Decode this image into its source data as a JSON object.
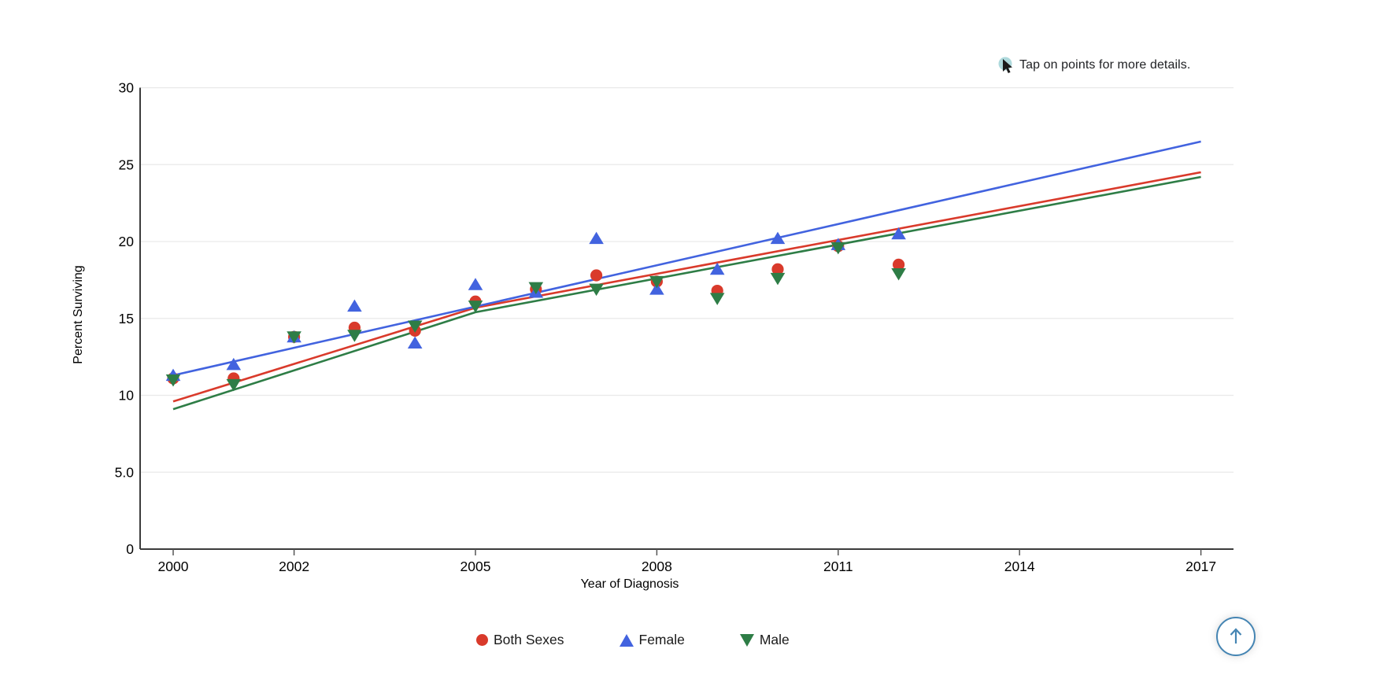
{
  "note": {
    "text": "Tap on points for more details.",
    "icon": "cursor-icon",
    "icon_circle_color": "#aed9dc",
    "icon_arrow_color": "#1a1a1a"
  },
  "chart_data": {
    "type": "scatter",
    "title": "",
    "xlabel": "Year of Diagnosis",
    "ylabel": "Percent Surviving",
    "xlim": [
      1999.5,
      2017.5
    ],
    "ylim": [
      0,
      30
    ],
    "grid": "horizontal",
    "legend_position": "bottom",
    "x_ticks": [
      {
        "v": 2000,
        "label": "2000"
      },
      {
        "v": 2002,
        "label": "2002"
      },
      {
        "v": 2005,
        "label": "2005"
      },
      {
        "v": 2008,
        "label": "2008"
      },
      {
        "v": 2011,
        "label": "2011"
      },
      {
        "v": 2014,
        "label": "2014"
      },
      {
        "v": 2017,
        "label": "2017"
      }
    ],
    "y_ticks": [
      {
        "v": 30,
        "label": "30"
      },
      {
        "v": 25,
        "label": "25"
      },
      {
        "v": 20,
        "label": "20"
      },
      {
        "v": 15,
        "label": "15"
      },
      {
        "v": 10,
        "label": "10"
      },
      {
        "v": 5,
        "label": "5.0"
      },
      {
        "v": 0,
        "label": "0"
      }
    ],
    "x": [
      2000,
      2001,
      2002,
      2003,
      2004,
      2005,
      2006,
      2007,
      2008,
      2009,
      2010,
      2011,
      2012
    ],
    "series": [
      {
        "name": "Both Sexes",
        "color": "#d93a2b",
        "marker": "circle",
        "values": [
          11.1,
          11.1,
          13.8,
          14.4,
          14.2,
          16.1,
          16.9,
          17.8,
          17.4,
          16.8,
          18.2,
          19.7,
          18.5
        ],
        "trend": [
          [
            2000,
            9.6
          ],
          [
            2005,
            15.7
          ],
          [
            2017,
            24.5
          ]
        ]
      },
      {
        "name": "Female",
        "color": "#4263df",
        "marker": "triangle-up",
        "values": [
          11.3,
          12.0,
          13.8,
          15.8,
          13.4,
          17.2,
          16.7,
          20.2,
          16.9,
          18.2,
          20.2,
          19.8,
          20.5
        ],
        "trend": [
          [
            2000,
            11.3
          ],
          [
            2017,
            26.5
          ]
        ]
      },
      {
        "name": "Male",
        "color": "#2e7d46",
        "marker": "triangle-down",
        "values": [
          11.0,
          10.7,
          13.8,
          13.9,
          14.5,
          15.8,
          17.0,
          16.9,
          17.4,
          16.3,
          17.6,
          19.6,
          17.9
        ],
        "trend": [
          [
            2000,
            9.1
          ],
          [
            2005,
            15.4
          ],
          [
            2017,
            24.2
          ]
        ]
      }
    ]
  },
  "colors": {
    "axis": "#3c3c3c",
    "grid": "#e9e9e9",
    "tick": "#555555",
    "tick_text": "#000000",
    "button_blue": "#4585b3"
  },
  "scroll_top_button": {
    "icon": "arrow-up-icon"
  }
}
